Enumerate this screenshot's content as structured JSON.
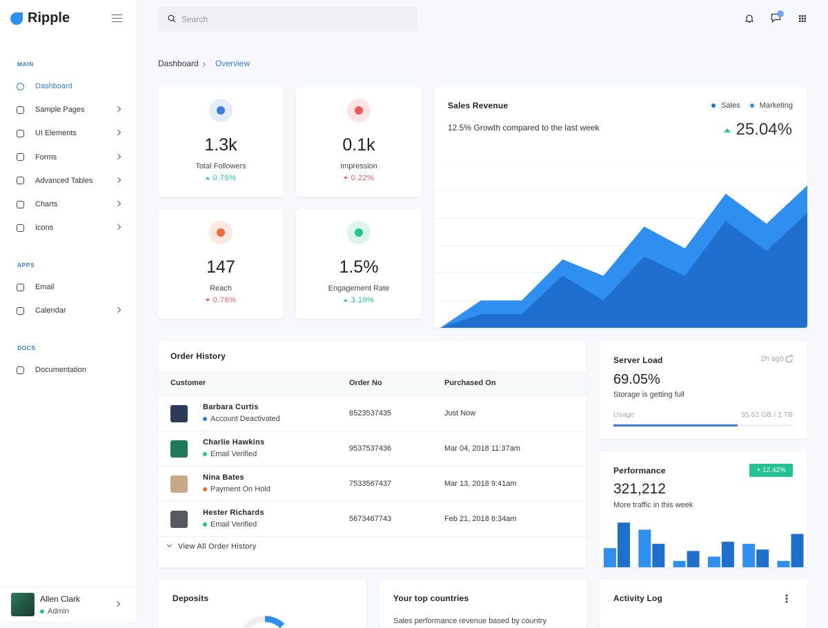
{
  "brand": "Ripple",
  "search_placeholder": "Search",
  "nav": [
    {
      "title": "MAIN",
      "items": [
        {
          "label": "Dashboard",
          "active": true
        },
        {
          "label": "Sample Pages",
          "expandable": true
        },
        {
          "label": "UI Elements",
          "expandable": true
        },
        {
          "label": "Forms",
          "expandable": true
        },
        {
          "label": "Advanced Tables",
          "expandable": true
        },
        {
          "label": "Charts",
          "expandable": true
        },
        {
          "label": "Icons",
          "expandable": true
        }
      ]
    },
    {
      "title": "APPS",
      "items": [
        {
          "label": "Email"
        },
        {
          "label": "Calendar",
          "expandable": true
        }
      ]
    },
    {
      "title": "DOCS",
      "items": [
        {
          "label": "Documentation"
        }
      ]
    }
  ],
  "user": {
    "name": "Allen Clark",
    "role": "Admin"
  },
  "breadcrumb": [
    "Dashboard",
    "Overview"
  ],
  "stats": [
    {
      "value": "1.3k",
      "label": "Total Followers",
      "change": "0.75%",
      "trend": "up",
      "color": "#3c7ee0",
      "bg": "#e4edfb"
    },
    {
      "value": "0.1k",
      "label": "Impression",
      "change": "0.22%",
      "trend": "down",
      "color": "#ef5b5b",
      "bg": "#fde4e4"
    },
    {
      "value": "147",
      "label": "Reach",
      "change": "0.76%",
      "trend": "down",
      "color": "#f26b3a",
      "bg": "#fde8e1"
    },
    {
      "value": "1.5%",
      "label": "Engagement Rate",
      "change": "3.19%",
      "trend": "up",
      "color": "#22c38e",
      "bg": "#dcf5ec"
    }
  ],
  "sales_revenue": {
    "title": "Sales Revenue",
    "subtitle": "12.5% Growth compared to the last week",
    "growth": "25.04%",
    "chart_data": {
      "type": "area",
      "categories": [
        null,
        null,
        null,
        null,
        null,
        null,
        null,
        null,
        null,
        null
      ],
      "series": [
        {
          "name": "Sales",
          "color": "#1f6fcf",
          "values": [
            0,
            5,
            5,
            19,
            10,
            26,
            19,
            39,
            28,
            42
          ]
        },
        {
          "name": "Marketing",
          "color": "#2e8ff0",
          "values": [
            0,
            10,
            10,
            25,
            19,
            37,
            29,
            49,
            38,
            52
          ]
        }
      ],
      "ylim": [
        0,
        60
      ],
      "yticks": [
        0,
        10,
        20,
        30,
        40,
        50,
        60
      ],
      "grid": true,
      "legend": "top-right"
    }
  },
  "order_history": {
    "title": "Order History",
    "columns": [
      "Customer",
      "Order No",
      "Purchased On"
    ],
    "rows": [
      {
        "name": "Barbara Curtis",
        "status": "Account Deactivated",
        "status_color": "#3a7bd5",
        "order_no": "8523537435",
        "date": "Just Now",
        "avatar": "#2b3a55"
      },
      {
        "name": "Charlie Hawkins",
        "status": "Email Verified",
        "status_color": "#22c38e",
        "order_no": "9537537436",
        "date": "Mar 04, 2018 11:37am",
        "avatar": "#1f7a5c"
      },
      {
        "name": "Nina Bates",
        "status": "Payment On Hold",
        "status_color": "#f26b3a",
        "order_no": "7533567437",
        "date": "Mar 13, 2018 9:41am",
        "avatar": "#c9a88a"
      },
      {
        "name": "Hester Richards",
        "status": "Email Verified",
        "status_color": "#22c38e",
        "order_no": "5673467743",
        "date": "Feb 21, 2018 8:34am",
        "avatar": "#555a60"
      }
    ],
    "footer": "View All Order History"
  },
  "server_load": {
    "title": "Server Load",
    "time": "2h ago",
    "value": 69.05,
    "value_label": "69.05%",
    "subtitle": "Storage is getting full",
    "usage_label": "Usage",
    "usage": "35.62 GB / 2 TB"
  },
  "performance": {
    "title": "Performance",
    "badge": "+ 12.42%",
    "value": "321,212",
    "subtitle": "More traffic in this week",
    "chart_data": {
      "type": "bar",
      "categories": [
        null,
        null,
        null,
        null,
        null,
        null
      ],
      "series": [
        {
          "color": "#2e8ff0",
          "values": [
            27,
            53,
            9,
            15,
            33,
            9
          ]
        },
        {
          "color": "#1f6fcf",
          "values": [
            63,
            33,
            23,
            36,
            25,
            47
          ]
        }
      ],
      "ylim": [
        0,
        70
      ]
    }
  },
  "bottom_cards": {
    "deposits": "Deposits",
    "countries": "Your top countries",
    "countries_subtitle": "Sales performance revenue based by country",
    "activity": "Activity Log"
  }
}
